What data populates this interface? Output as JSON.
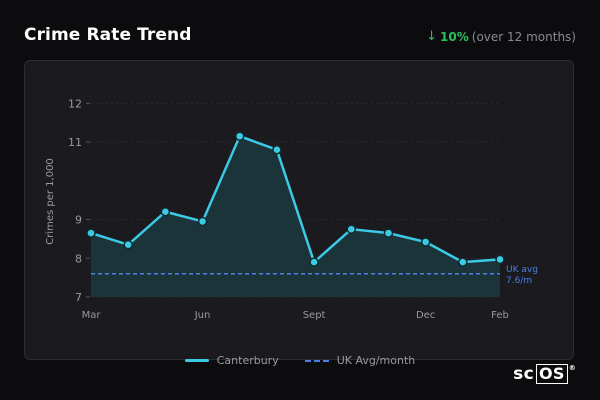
{
  "header": {
    "title": "Crime Rate Trend",
    "change_arrow": "↓",
    "change_pct": "10%",
    "change_period": "(over 12 months)"
  },
  "legend": {
    "series_label": "Canterbury",
    "avg_label": "UK Avg/month"
  },
  "logo": {
    "text_sc": "sc",
    "text_os": "OS",
    "mark": "®"
  },
  "colors": {
    "line": "#3ccbe6",
    "area": "#1c3a3f",
    "avg": "#4a7fe6",
    "positive": "#2bc15c"
  },
  "chart_data": {
    "type": "line",
    "ylabel": "Crimes per 1,000",
    "xlabel": "",
    "ylim": [
      7,
      12.6
    ],
    "yticks": [
      7,
      8,
      9,
      11,
      12
    ],
    "x_ticks": [
      "Mar",
      "Jun",
      "Sept",
      "Dec",
      "Feb"
    ],
    "x_tick_positions": [
      0,
      3,
      6,
      9,
      11
    ],
    "series": [
      {
        "name": "Canterbury",
        "values": [
          8.65,
          8.35,
          9.2,
          8.95,
          11.15,
          10.8,
          7.9,
          8.75,
          8.65,
          8.42,
          7.9,
          7.97
        ]
      }
    ],
    "reference": {
      "name": "UK Avg/month",
      "value": 7.6,
      "annotation_line1": "UK avg",
      "annotation_line2": "7.6/m"
    },
    "grid": true
  }
}
